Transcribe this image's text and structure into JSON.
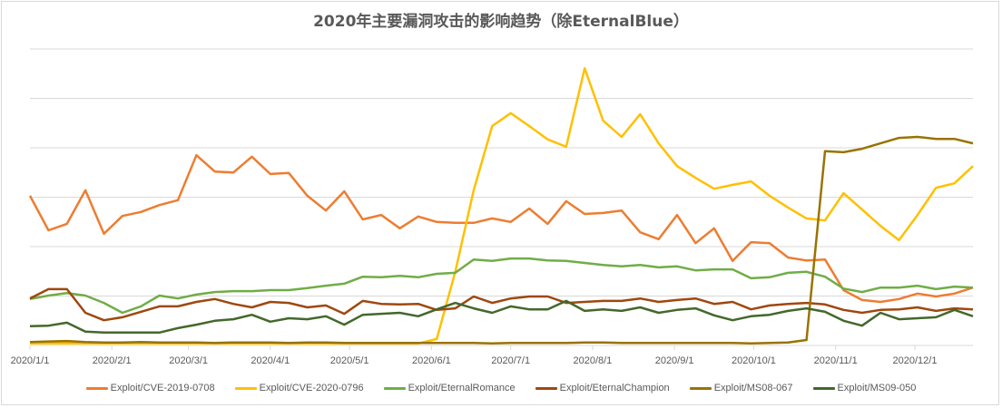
{
  "title": "2020年主要漏洞攻击的影响趋势（除EternalBlue）",
  "chart_data": {
    "type": "line",
    "title": "2020年主要漏洞攻击的影响趋势（除EternalBlue）",
    "xlabel": "",
    "ylabel": "",
    "y_units_note": "no y-axis tick labels shown; values in gridline units (6 gridlines above baseline)",
    "ylim": [
      0,
      6
    ],
    "grid": true,
    "legend_position": "bottom",
    "x_tick_labels": [
      "2020/1/1",
      "2020/2/1",
      "2020/3/1",
      "2020/4/1",
      "2020/5/1",
      "2020/6/1",
      "2020/7/1",
      "2020/8/1",
      "2020/9/1",
      "2020/10/1",
      "2020/11/1",
      "2020/12/1"
    ],
    "x_points": 52,
    "x_interval": "weekly",
    "series": [
      {
        "name": "Exploit/CVE-2019-0708",
        "color": "#ED7D31",
        "values": [
          3.03,
          2.33,
          2.46,
          3.14,
          2.26,
          2.62,
          2.7,
          2.84,
          2.94,
          3.85,
          3.52,
          3.5,
          3.82,
          3.47,
          3.49,
          3.03,
          2.73,
          3.12,
          2.55,
          2.64,
          2.37,
          2.61,
          2.5,
          2.48,
          2.48,
          2.57,
          2.5,
          2.77,
          2.46,
          2.92,
          2.66,
          2.68,
          2.73,
          2.29,
          2.15,
          2.64,
          2.07,
          2.37,
          1.71,
          2.09,
          2.07,
          1.78,
          1.72,
          1.74,
          1.12,
          0.92,
          0.88,
          0.94,
          1.05,
          0.99,
          1.05,
          1.17
        ]
      },
      {
        "name": "Exploit/CVE-2020-0796",
        "color": "#FFC000",
        "values": [
          0.04,
          0.04,
          0.04,
          0.04,
          0.04,
          0.04,
          0.04,
          0.04,
          0.04,
          0.04,
          0.04,
          0.04,
          0.04,
          0.04,
          0.04,
          0.04,
          0.04,
          0.04,
          0.04,
          0.04,
          0.04,
          0.04,
          0.13,
          1.49,
          3.14,
          4.44,
          4.7,
          4.44,
          4.17,
          4.02,
          5.61,
          4.55,
          4.22,
          4.68,
          4.09,
          3.63,
          3.39,
          3.17,
          3.25,
          3.32,
          3.03,
          2.79,
          2.57,
          2.53,
          3.08,
          2.75,
          2.42,
          2.13,
          2.64,
          3.19,
          3.28,
          3.63
        ]
      },
      {
        "name": "Exploit/EternalRomance",
        "color": "#70AD47",
        "values": [
          0.94,
          1.01,
          1.06,
          1.01,
          0.86,
          0.66,
          0.79,
          1.01,
          0.95,
          1.03,
          1.08,
          1.1,
          1.1,
          1.12,
          1.12,
          1.16,
          1.21,
          1.25,
          1.39,
          1.38,
          1.41,
          1.38,
          1.45,
          1.47,
          1.74,
          1.71,
          1.76,
          1.76,
          1.72,
          1.71,
          1.67,
          1.63,
          1.6,
          1.63,
          1.58,
          1.6,
          1.52,
          1.54,
          1.54,
          1.36,
          1.38,
          1.47,
          1.49,
          1.39,
          1.15,
          1.08,
          1.17,
          1.17,
          1.21,
          1.14,
          1.19,
          1.17
        ]
      },
      {
        "name": "Exploit/EternalChampion",
        "color": "#9E480E",
        "values": [
          0.95,
          1.14,
          1.14,
          0.66,
          0.51,
          0.57,
          0.68,
          0.79,
          0.79,
          0.88,
          0.94,
          0.84,
          0.77,
          0.88,
          0.86,
          0.77,
          0.81,
          0.64,
          0.9,
          0.84,
          0.83,
          0.84,
          0.72,
          0.75,
          0.99,
          0.86,
          0.95,
          0.99,
          0.99,
          0.86,
          0.88,
          0.9,
          0.9,
          0.95,
          0.88,
          0.92,
          0.95,
          0.84,
          0.88,
          0.73,
          0.81,
          0.84,
          0.86,
          0.83,
          0.72,
          0.66,
          0.72,
          0.73,
          0.77,
          0.7,
          0.75,
          0.73
        ]
      },
      {
        "name": "Exploit/MS08-067",
        "color": "#997300",
        "values": [
          0.07,
          0.08,
          0.09,
          0.07,
          0.06,
          0.06,
          0.07,
          0.06,
          0.06,
          0.06,
          0.05,
          0.06,
          0.06,
          0.06,
          0.05,
          0.06,
          0.06,
          0.05,
          0.05,
          0.05,
          0.05,
          0.05,
          0.05,
          0.05,
          0.05,
          0.04,
          0.05,
          0.05,
          0.05,
          0.05,
          0.06,
          0.06,
          0.05,
          0.05,
          0.05,
          0.05,
          0.05,
          0.05,
          0.05,
          0.04,
          0.05,
          0.06,
          0.11,
          3.93,
          3.91,
          3.98,
          4.09,
          4.2,
          4.22,
          4.18,
          4.18,
          4.09
        ]
      },
      {
        "name": "Exploit/MS09-050",
        "color": "#43682B",
        "values": [
          0.39,
          0.4,
          0.46,
          0.28,
          0.26,
          0.26,
          0.26,
          0.26,
          0.35,
          0.42,
          0.5,
          0.53,
          0.62,
          0.48,
          0.55,
          0.53,
          0.59,
          0.42,
          0.62,
          0.64,
          0.66,
          0.59,
          0.73,
          0.86,
          0.75,
          0.66,
          0.79,
          0.73,
          0.73,
          0.9,
          0.7,
          0.73,
          0.7,
          0.77,
          0.66,
          0.72,
          0.75,
          0.61,
          0.51,
          0.59,
          0.62,
          0.7,
          0.75,
          0.68,
          0.5,
          0.4,
          0.66,
          0.53,
          0.55,
          0.57,
          0.72,
          0.59
        ]
      }
    ]
  }
}
